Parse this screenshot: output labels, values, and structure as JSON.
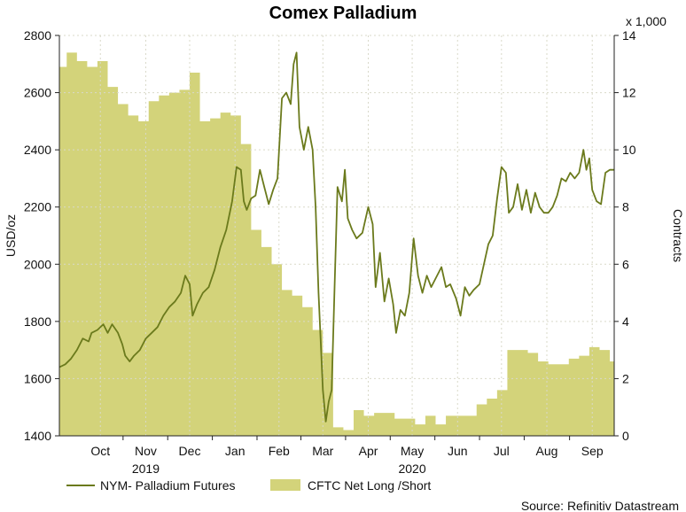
{
  "chart_data": {
    "type": "line",
    "title": "Comex Palladium",
    "left_axis": {
      "label": "USD/oz",
      "ylim": [
        1400,
        2800
      ],
      "ticks": [
        1400,
        1600,
        1800,
        2000,
        2200,
        2400,
        2600,
        2800
      ]
    },
    "right_axis": {
      "label": "Contracts",
      "multiplier_label": "x 1,000",
      "ylim": [
        0,
        14
      ],
      "ticks": [
        0,
        2,
        4,
        6,
        8,
        10,
        12,
        14
      ]
    },
    "x_axis": {
      "range": [
        "2019-09-18",
        "2020-10-01"
      ],
      "month_ticks": [
        {
          "label": "Oct",
          "date": "2019-10-16"
        },
        {
          "label": "Nov",
          "date": "2019-11-16"
        },
        {
          "label": "Dec",
          "date": "2019-12-16"
        },
        {
          "label": "Jan",
          "date": "2020-01-16"
        },
        {
          "label": "Feb",
          "date": "2020-02-15"
        },
        {
          "label": "Mar",
          "date": "2020-03-16"
        },
        {
          "label": "Apr",
          "date": "2020-04-16"
        },
        {
          "label": "May",
          "date": "2020-05-16"
        },
        {
          "label": "Jun",
          "date": "2020-06-16"
        },
        {
          "label": "Jul",
          "date": "2020-07-16"
        },
        {
          "label": "Aug",
          "date": "2020-08-16"
        },
        {
          "label": "Sep",
          "date": "2020-09-16"
        }
      ],
      "year_labels": [
        {
          "label": "2019",
          "date": "2019-11-16"
        },
        {
          "label": "2020",
          "date": "2020-05-16"
        }
      ]
    },
    "series": [
      {
        "name": "NYM- Palladium Futures",
        "axis": "left",
        "color": "#6b7a1c",
        "points": [
          [
            "2019-09-18",
            1640
          ],
          [
            "2019-09-22",
            1650
          ],
          [
            "2019-09-26",
            1670
          ],
          [
            "2019-09-30",
            1700
          ],
          [
            "2019-10-04",
            1740
          ],
          [
            "2019-10-08",
            1730
          ],
          [
            "2019-10-10",
            1760
          ],
          [
            "2019-10-14",
            1770
          ],
          [
            "2019-10-18",
            1790
          ],
          [
            "2019-10-21",
            1760
          ],
          [
            "2019-10-24",
            1790
          ],
          [
            "2019-10-28",
            1760
          ],
          [
            "2019-10-31",
            1720
          ],
          [
            "2019-11-02",
            1680
          ],
          [
            "2019-11-05",
            1660
          ],
          [
            "2019-11-08",
            1680
          ],
          [
            "2019-11-12",
            1700
          ],
          [
            "2019-11-16",
            1740
          ],
          [
            "2019-11-20",
            1760
          ],
          [
            "2019-11-24",
            1780
          ],
          [
            "2019-11-28",
            1820
          ],
          [
            "2019-12-02",
            1850
          ],
          [
            "2019-12-06",
            1870
          ],
          [
            "2019-12-10",
            1900
          ],
          [
            "2019-12-13",
            1960
          ],
          [
            "2019-12-16",
            1930
          ],
          [
            "2019-12-18",
            1820
          ],
          [
            "2019-12-21",
            1860
          ],
          [
            "2019-12-25",
            1900
          ],
          [
            "2019-12-29",
            1920
          ],
          [
            "2020-01-02",
            1980
          ],
          [
            "2020-01-06",
            2060
          ],
          [
            "2020-01-10",
            2120
          ],
          [
            "2020-01-14",
            2220
          ],
          [
            "2020-01-17",
            2340
          ],
          [
            "2020-01-20",
            2330
          ],
          [
            "2020-01-22",
            2220
          ],
          [
            "2020-01-24",
            2190
          ],
          [
            "2020-01-27",
            2230
          ],
          [
            "2020-01-30",
            2240
          ],
          [
            "2020-02-02",
            2330
          ],
          [
            "2020-02-05",
            2270
          ],
          [
            "2020-02-08",
            2210
          ],
          [
            "2020-02-11",
            2260
          ],
          [
            "2020-02-14",
            2300
          ],
          [
            "2020-02-17",
            2580
          ],
          [
            "2020-02-20",
            2600
          ],
          [
            "2020-02-23",
            2560
          ],
          [
            "2020-02-25",
            2700
          ],
          [
            "2020-02-27",
            2740
          ],
          [
            "2020-02-29",
            2480
          ],
          [
            "2020-03-03",
            2400
          ],
          [
            "2020-03-06",
            2480
          ],
          [
            "2020-03-09",
            2400
          ],
          [
            "2020-03-11",
            2200
          ],
          [
            "2020-03-13",
            1900
          ],
          [
            "2020-03-16",
            1560
          ],
          [
            "2020-03-18",
            1450
          ],
          [
            "2020-03-20",
            1520
          ],
          [
            "2020-03-22",
            1560
          ],
          [
            "2020-03-24",
            1920
          ],
          [
            "2020-03-26",
            2270
          ],
          [
            "2020-03-29",
            2220
          ],
          [
            "2020-03-31",
            2330
          ],
          [
            "2020-04-02",
            2160
          ],
          [
            "2020-04-05",
            2120
          ],
          [
            "2020-04-08",
            2090
          ],
          [
            "2020-04-12",
            2110
          ],
          [
            "2020-04-16",
            2200
          ],
          [
            "2020-04-19",
            2140
          ],
          [
            "2020-04-21",
            1920
          ],
          [
            "2020-04-24",
            2040
          ],
          [
            "2020-04-27",
            1870
          ],
          [
            "2020-04-30",
            1950
          ],
          [
            "2020-05-03",
            1860
          ],
          [
            "2020-05-05",
            1760
          ],
          [
            "2020-05-08",
            1840
          ],
          [
            "2020-05-11",
            1820
          ],
          [
            "2020-05-14",
            1900
          ],
          [
            "2020-05-17",
            2090
          ],
          [
            "2020-05-20",
            1960
          ],
          [
            "2020-05-23",
            1900
          ],
          [
            "2020-05-26",
            1960
          ],
          [
            "2020-05-29",
            1920
          ],
          [
            "2020-06-01",
            1950
          ],
          [
            "2020-06-05",
            1990
          ],
          [
            "2020-06-08",
            1920
          ],
          [
            "2020-06-11",
            1930
          ],
          [
            "2020-06-15",
            1880
          ],
          [
            "2020-06-18",
            1820
          ],
          [
            "2020-06-21",
            1920
          ],
          [
            "2020-06-24",
            1890
          ],
          [
            "2020-06-27",
            1910
          ],
          [
            "2020-07-01",
            1930
          ],
          [
            "2020-07-04",
            2000
          ],
          [
            "2020-07-07",
            2070
          ],
          [
            "2020-07-10",
            2100
          ],
          [
            "2020-07-13",
            2230
          ],
          [
            "2020-07-16",
            2340
          ],
          [
            "2020-07-19",
            2320
          ],
          [
            "2020-07-21",
            2180
          ],
          [
            "2020-07-24",
            2200
          ],
          [
            "2020-07-27",
            2280
          ],
          [
            "2020-07-30",
            2190
          ],
          [
            "2020-08-02",
            2260
          ],
          [
            "2020-08-05",
            2180
          ],
          [
            "2020-08-08",
            2250
          ],
          [
            "2020-08-11",
            2200
          ],
          [
            "2020-08-14",
            2180
          ],
          [
            "2020-08-17",
            2180
          ],
          [
            "2020-08-20",
            2200
          ],
          [
            "2020-08-23",
            2240
          ],
          [
            "2020-08-26",
            2300
          ],
          [
            "2020-08-29",
            2290
          ],
          [
            "2020-09-01",
            2320
          ],
          [
            "2020-09-04",
            2300
          ],
          [
            "2020-09-07",
            2320
          ],
          [
            "2020-09-10",
            2400
          ],
          [
            "2020-09-12",
            2330
          ],
          [
            "2020-09-14",
            2370
          ],
          [
            "2020-09-16",
            2260
          ],
          [
            "2020-09-19",
            2220
          ],
          [
            "2020-09-22",
            2210
          ],
          [
            "2020-09-25",
            2320
          ],
          [
            "2020-09-28",
            2330
          ],
          [
            "2020-10-01",
            2330
          ]
        ]
      },
      {
        "name": "CFTC Net Long /Short",
        "axis": "right",
        "color": "#d3d37a",
        "unit": "contracts x 1,000",
        "steps": [
          [
            "2019-09-18",
            12.9
          ],
          [
            "2019-09-23",
            13.4
          ],
          [
            "2019-09-30",
            13.1
          ],
          [
            "2019-10-07",
            12.9
          ],
          [
            "2019-10-14",
            13.1
          ],
          [
            "2019-10-21",
            12.2
          ],
          [
            "2019-10-28",
            11.6
          ],
          [
            "2019-11-04",
            11.2
          ],
          [
            "2019-11-11",
            11.0
          ],
          [
            "2019-11-18",
            11.7
          ],
          [
            "2019-11-25",
            11.9
          ],
          [
            "2019-12-02",
            12.0
          ],
          [
            "2019-12-09",
            12.1
          ],
          [
            "2019-12-16",
            12.7
          ],
          [
            "2019-12-23",
            11.0
          ],
          [
            "2019-12-30",
            11.1
          ],
          [
            "2020-01-06",
            11.3
          ],
          [
            "2020-01-13",
            11.2
          ],
          [
            "2020-01-20",
            10.2
          ],
          [
            "2020-01-27",
            7.2
          ],
          [
            "2020-02-03",
            6.6
          ],
          [
            "2020-02-10",
            6.0
          ],
          [
            "2020-02-17",
            5.1
          ],
          [
            "2020-02-24",
            4.9
          ],
          [
            "2020-03-02",
            4.5
          ],
          [
            "2020-03-09",
            3.7
          ],
          [
            "2020-03-16",
            2.9
          ],
          [
            "2020-03-23",
            0.3
          ],
          [
            "2020-03-30",
            0.2
          ],
          [
            "2020-04-06",
            0.9
          ],
          [
            "2020-04-13",
            0.7
          ],
          [
            "2020-04-20",
            0.8
          ],
          [
            "2020-04-27",
            0.8
          ],
          [
            "2020-05-04",
            0.6
          ],
          [
            "2020-05-11",
            0.6
          ],
          [
            "2020-05-18",
            0.4
          ],
          [
            "2020-05-25",
            0.7
          ],
          [
            "2020-06-01",
            0.4
          ],
          [
            "2020-06-08",
            0.7
          ],
          [
            "2020-06-15",
            0.7
          ],
          [
            "2020-06-22",
            0.7
          ],
          [
            "2020-06-29",
            1.1
          ],
          [
            "2020-07-06",
            1.3
          ],
          [
            "2020-07-13",
            1.6
          ],
          [
            "2020-07-20",
            3.0
          ],
          [
            "2020-07-27",
            3.0
          ],
          [
            "2020-08-03",
            2.9
          ],
          [
            "2020-08-10",
            2.6
          ],
          [
            "2020-08-17",
            2.5
          ],
          [
            "2020-08-24",
            2.5
          ],
          [
            "2020-08-31",
            2.7
          ],
          [
            "2020-09-07",
            2.8
          ],
          [
            "2020-09-14",
            3.1
          ],
          [
            "2020-09-21",
            3.0
          ],
          [
            "2020-09-28",
            2.6
          ]
        ]
      }
    ],
    "legend": {
      "placement": "bottom-left"
    },
    "grid": true,
    "source": "Source: Refinitiv Datastream"
  }
}
